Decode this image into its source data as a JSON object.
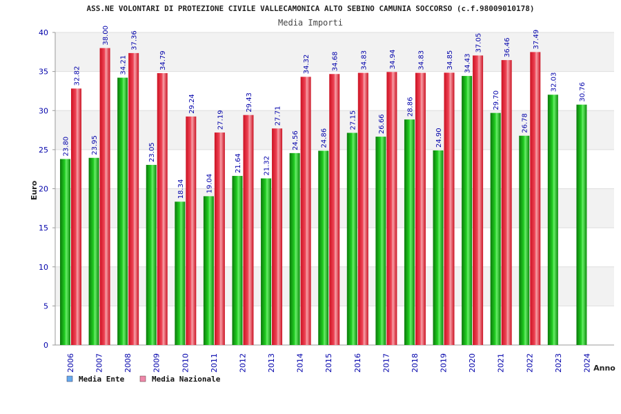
{
  "chart_data": {
    "type": "bar",
    "title": "ASS.NE VOLONTARI DI PROTEZIONE CIVILE VALLECAMONICA ALTO SEBINO CAMUNIA SOCCORSO (c.f.98009010178)",
    "subtitle": "Media Importi",
    "xlabel": "Anno",
    "ylabel": "Euro",
    "ylim": [
      0,
      40
    ],
    "yticks": [
      0,
      5,
      10,
      15,
      20,
      25,
      30,
      35,
      40
    ],
    "grid": true,
    "legend_position": "bottom-left",
    "categories": [
      "2006",
      "2007",
      "2008",
      "2009",
      "2010",
      "2011",
      "2012",
      "2013",
      "2014",
      "2015",
      "2016",
      "2017",
      "2018",
      "2019",
      "2020",
      "2021",
      "2022",
      "2023",
      "2024"
    ],
    "series": [
      {
        "name": "Media Ente",
        "bar_color": "#22bb22",
        "legend_color": "#66aaee",
        "values": [
          23.8,
          23.95,
          34.21,
          23.05,
          18.34,
          19.04,
          21.64,
          21.32,
          24.56,
          24.86,
          27.15,
          26.66,
          28.86,
          24.9,
          34.43,
          29.7,
          26.78,
          32.03,
          30.76
        ],
        "labels": [
          "23.80",
          "23.95",
          "34.21",
          "23.05",
          "18.34",
          "19.04",
          "21.64",
          "21.32",
          "24.56",
          "24.86",
          "27.15",
          "26.66",
          "28.86",
          "24.90",
          "34.43",
          "29.70",
          "26.78",
          "32.03",
          "30.76"
        ]
      },
      {
        "name": "Media Nazionale",
        "bar_color": "#ee3344",
        "legend_color": "#ee88aa",
        "values": [
          32.82,
          38.0,
          37.36,
          34.79,
          29.24,
          27.19,
          29.43,
          27.71,
          34.32,
          34.68,
          34.83,
          34.94,
          34.83,
          34.85,
          37.05,
          36.46,
          37.49,
          null,
          null
        ],
        "labels": [
          "32.82",
          "38.00",
          "37.36",
          "34.79",
          "29.24",
          "27.19",
          "29.43",
          "27.71",
          "34.32",
          "34.68",
          "34.83",
          "34.94",
          "34.83",
          "34.85",
          "37.05",
          "36.46",
          "37.49",
          null,
          null
        ]
      }
    ]
  }
}
